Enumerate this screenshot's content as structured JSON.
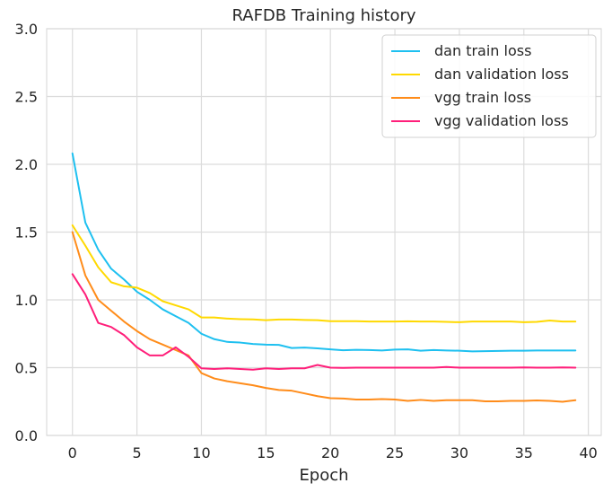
{
  "chart_data": {
    "type": "line",
    "title": "RAFDB Training history",
    "xlabel": "Epoch",
    "ylabel": "",
    "xlim": [
      -2,
      41
    ],
    "ylim": [
      0,
      3.0
    ],
    "xticks": [
      0,
      5,
      10,
      15,
      20,
      25,
      30,
      35,
      40
    ],
    "xtick_labels": [
      "0",
      "5",
      "10",
      "15",
      "20",
      "25",
      "30",
      "35",
      "40"
    ],
    "yticks": [
      0,
      0.5,
      1.0,
      1.5,
      2.0,
      2.5,
      3.0
    ],
    "ytick_labels": [
      "0.0",
      "0.5",
      "1.0",
      "1.5",
      "2.0",
      "2.5",
      "3.0"
    ],
    "grid": true,
    "legend_position": "top-right",
    "x": [
      0,
      1,
      2,
      3,
      4,
      5,
      6,
      7,
      8,
      9,
      10,
      11,
      12,
      13,
      14,
      15,
      16,
      17,
      18,
      19,
      20,
      21,
      22,
      23,
      24,
      25,
      26,
      27,
      28,
      29,
      30,
      31,
      32,
      33,
      34,
      35,
      36,
      37,
      38,
      39
    ],
    "series": [
      {
        "name": "dan train loss",
        "color": "#1ec0f0",
        "values": [
          2.08,
          1.57,
          1.37,
          1.23,
          1.15,
          1.06,
          1.0,
          0.93,
          0.88,
          0.83,
          0.75,
          0.71,
          0.69,
          0.685,
          0.675,
          0.67,
          0.668,
          0.645,
          0.648,
          0.642,
          0.635,
          0.628,
          0.632,
          0.63,
          0.627,
          0.633,
          0.635,
          0.625,
          0.63,
          0.627,
          0.625,
          0.62,
          0.622,
          0.623,
          0.625,
          0.625,
          0.627,
          0.627,
          0.627,
          0.627
        ]
      },
      {
        "name": "dan validation loss",
        "color": "#ffd900",
        "values": [
          1.55,
          1.4,
          1.24,
          1.13,
          1.1,
          1.09,
          1.05,
          0.99,
          0.96,
          0.93,
          0.87,
          0.87,
          0.862,
          0.858,
          0.856,
          0.85,
          0.855,
          0.855,
          0.852,
          0.85,
          0.843,
          0.843,
          0.843,
          0.84,
          0.84,
          0.84,
          0.842,
          0.84,
          0.84,
          0.838,
          0.835,
          0.84,
          0.84,
          0.84,
          0.84,
          0.835,
          0.838,
          0.848,
          0.84,
          0.84
        ]
      },
      {
        "name": "vgg train loss",
        "color": "#ff8c1a",
        "values": [
          1.5,
          1.18,
          1.0,
          0.92,
          0.84,
          0.77,
          0.71,
          0.67,
          0.63,
          0.59,
          0.46,
          0.42,
          0.4,
          0.385,
          0.37,
          0.35,
          0.335,
          0.33,
          0.31,
          0.29,
          0.275,
          0.272,
          0.265,
          0.265,
          0.268,
          0.265,
          0.255,
          0.262,
          0.255,
          0.26,
          0.26,
          0.26,
          0.252,
          0.252,
          0.255,
          0.255,
          0.258,
          0.255,
          0.248,
          0.26
        ]
      },
      {
        "name": "vgg validation loss",
        "color": "#ff1f7a",
        "values": [
          1.19,
          1.04,
          0.83,
          0.8,
          0.74,
          0.65,
          0.59,
          0.59,
          0.65,
          0.58,
          0.495,
          0.49,
          0.495,
          0.49,
          0.485,
          0.495,
          0.49,
          0.495,
          0.495,
          0.52,
          0.5,
          0.498,
          0.5,
          0.5,
          0.5,
          0.5,
          0.5,
          0.5,
          0.5,
          0.505,
          0.5,
          0.5,
          0.5,
          0.5,
          0.5,
          0.502,
          0.5,
          0.5,
          0.502,
          0.5
        ]
      }
    ]
  }
}
